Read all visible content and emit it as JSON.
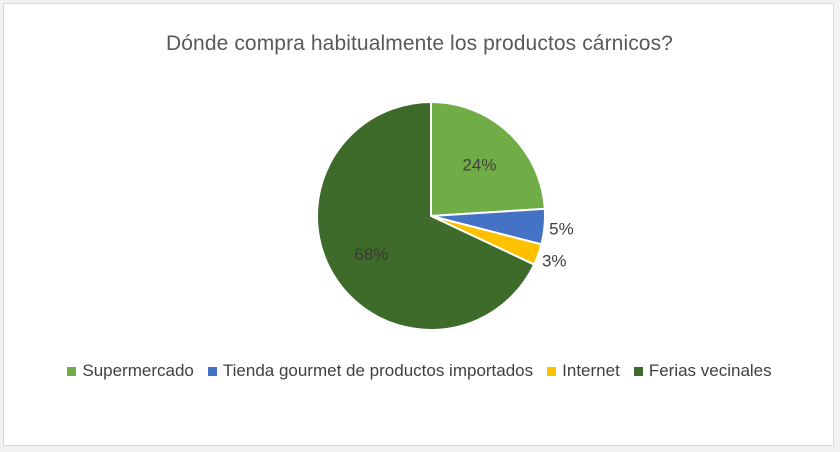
{
  "chart_data": {
    "type": "pie",
    "title": "Dónde compra habitualmente los productos cárnicos?",
    "categories": [
      "Supermercado",
      "Tienda gourmet de productos importados",
      "Internet",
      "Ferias vecinales"
    ],
    "values": [
      24,
      5,
      3,
      68
    ],
    "data_labels": [
      "24%",
      "5%",
      "3%",
      "68%"
    ],
    "colors": [
      "#70ad47",
      "#4472c4",
      "#ffc000",
      "#3e6b2a"
    ],
    "legend_position": "bottom",
    "start_angle": "12 o'clock, clockwise"
  }
}
